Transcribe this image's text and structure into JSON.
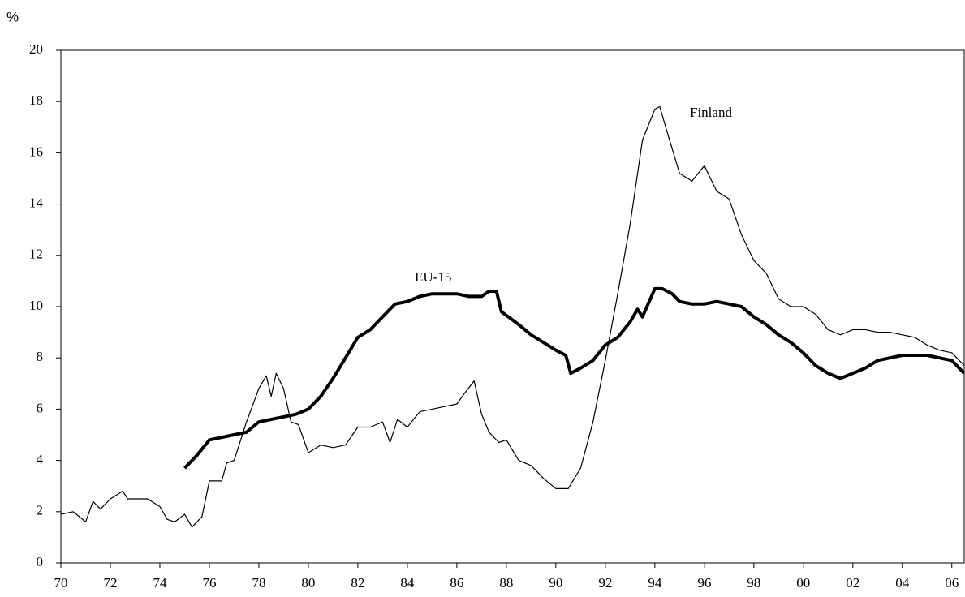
{
  "chart_data": {
    "type": "line",
    "y_label": "%",
    "xlim": [
      1970,
      2006.5
    ],
    "ylim": [
      0,
      20
    ],
    "yticks": [
      0,
      2,
      4,
      6,
      8,
      10,
      12,
      14,
      16,
      18,
      20
    ],
    "xticks": [
      {
        "value": 1970,
        "label": "70"
      },
      {
        "value": 1972,
        "label": "72"
      },
      {
        "value": 1974,
        "label": "74"
      },
      {
        "value": 1976,
        "label": "76"
      },
      {
        "value": 1978,
        "label": "78"
      },
      {
        "value": 1980,
        "label": "80"
      },
      {
        "value": 1982,
        "label": "82"
      },
      {
        "value": 1984,
        "label": "84"
      },
      {
        "value": 1986,
        "label": "86"
      },
      {
        "value": 1988,
        "label": "88"
      },
      {
        "value": 1990,
        "label": "90"
      },
      {
        "value": 1992,
        "label": "92"
      },
      {
        "value": 1994,
        "label": "94"
      },
      {
        "value": 1996,
        "label": "96"
      },
      {
        "value": 1998,
        "label": "98"
      },
      {
        "value": 2000,
        "label": "00"
      },
      {
        "value": 2002,
        "label": "02"
      },
      {
        "value": 2004,
        "label": "04"
      },
      {
        "value": 2006,
        "label": "06"
      }
    ],
    "series": [
      {
        "name": "Finland",
        "color": "#000000",
        "width": 1.2,
        "x": [
          1970,
          1970.5,
          1971,
          1971.3,
          1971.6,
          1972,
          1972.5,
          1972.7,
          1973,
          1973.5,
          1974,
          1974.3,
          1974.6,
          1975,
          1975.3,
          1975.7,
          1976,
          1976.5,
          1976.7,
          1977,
          1977.5,
          1978,
          1978.3,
          1978.5,
          1978.7,
          1979,
          1979.3,
          1979.6,
          1980,
          1980.5,
          1981,
          1981.5,
          1982,
          1982.5,
          1983,
          1983.3,
          1983.6,
          1984,
          1984.5,
          1985,
          1985.5,
          1986,
          1986.3,
          1986.7,
          1987,
          1987.3,
          1987.7,
          1988,
          1988.5,
          1989,
          1989.5,
          1990,
          1990.5,
          1991,
          1991.5,
          1992,
          1992.5,
          1993,
          1993.5,
          1994,
          1994.2,
          1994.5,
          1995,
          1995.5,
          1996,
          1996.5,
          1997,
          1997.5,
          1998,
          1998.5,
          1999,
          1999.5,
          2000,
          2000.5,
          2001,
          2001.5,
          2002,
          2002.5,
          2003,
          2003.5,
          2004,
          2004.5,
          2005,
          2005.5,
          2006,
          2006.5
        ],
        "values": [
          1.9,
          2.0,
          1.6,
          2.4,
          2.1,
          2.5,
          2.8,
          2.5,
          2.5,
          2.5,
          2.2,
          1.7,
          1.6,
          1.9,
          1.4,
          1.8,
          3.2,
          3.2,
          3.9,
          4.0,
          5.5,
          6.8,
          7.3,
          6.5,
          7.4,
          6.8,
          5.5,
          5.4,
          4.3,
          4.6,
          4.5,
          4.6,
          5.3,
          5.3,
          5.5,
          4.7,
          5.6,
          5.3,
          5.9,
          6.0,
          6.1,
          6.2,
          6.6,
          7.1,
          5.8,
          5.1,
          4.7,
          4.8,
          4.0,
          3.8,
          3.3,
          2.9,
          2.9,
          3.7,
          5.5,
          7.9,
          10.5,
          13.2,
          16.5,
          17.7,
          17.8,
          16.8,
          15.2,
          14.9,
          15.5,
          14.5,
          14.2,
          12.8,
          11.8,
          11.3,
          10.3,
          10.0,
          10.0,
          9.7,
          9.1,
          8.9,
          9.1,
          9.1,
          9.0,
          9.0,
          8.9,
          8.8,
          8.5,
          8.3,
          8.2,
          7.7
        ]
      },
      {
        "name": "EU-15",
        "color": "#000000",
        "width": 4,
        "x": [
          1975,
          1975.5,
          1976,
          1976.5,
          1977,
          1977.5,
          1978,
          1978.5,
          1979,
          1979.5,
          1980,
          1980.5,
          1981,
          1981.5,
          1982,
          1982.5,
          1983,
          1983.5,
          1984,
          1984.5,
          1985,
          1985.5,
          1986,
          1986.5,
          1987,
          1987.3,
          1987.6,
          1987.8,
          1988.5,
          1989,
          1989.5,
          1990,
          1990.4,
          1990.6,
          1991,
          1991.5,
          1992,
          1992.5,
          1993,
          1993.3,
          1993.5,
          1994,
          1994.3,
          1994.7,
          1995,
          1995.5,
          1996,
          1996.5,
          1997,
          1997.5,
          1998,
          1998.5,
          1999,
          1999.5,
          2000,
          2000.5,
          2001,
          2001.5,
          2002,
          2002.5,
          2003,
          2003.5,
          2004,
          2004.5,
          2005,
          2005.5,
          2006,
          2006.5
        ],
        "values": [
          3.7,
          4.2,
          4.8,
          4.9,
          5.0,
          5.1,
          5.5,
          5.6,
          5.7,
          5.8,
          6.0,
          6.5,
          7.2,
          8.0,
          8.8,
          9.1,
          9.6,
          10.1,
          10.2,
          10.4,
          10.5,
          10.5,
          10.5,
          10.4,
          10.4,
          10.6,
          10.6,
          9.8,
          9.3,
          8.9,
          8.6,
          8.3,
          8.1,
          7.4,
          7.6,
          7.9,
          8.5,
          8.8,
          9.4,
          9.9,
          9.6,
          10.7,
          10.7,
          10.5,
          10.2,
          10.1,
          10.1,
          10.2,
          10.1,
          10.0,
          9.6,
          9.3,
          8.9,
          8.6,
          8.2,
          7.7,
          7.4,
          7.2,
          7.4,
          7.6,
          7.9,
          8.0,
          8.1,
          8.1,
          8.1,
          8.0,
          7.9,
          7.4
        ]
      }
    ]
  }
}
